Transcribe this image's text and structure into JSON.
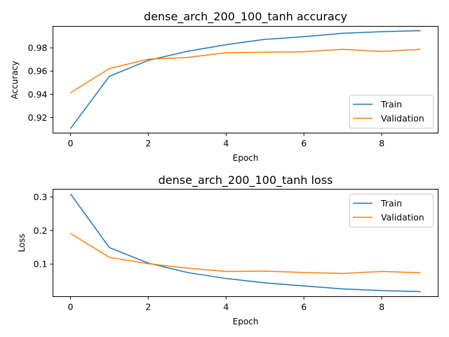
{
  "chart_data": [
    {
      "type": "line",
      "title": "dense_arch_200_100_tanh accuracy",
      "xlabel": "Epoch",
      "ylabel": "Accuracy",
      "xlim": [
        -0.45,
        9.45
      ],
      "ylim": [
        0.9067,
        0.9985
      ],
      "xticks": [
        0,
        2,
        4,
        6,
        8
      ],
      "yticks": [
        0.92,
        0.94,
        0.96,
        0.98
      ],
      "ytick_labels": [
        "0.92",
        "0.94",
        "0.96",
        "0.98"
      ],
      "legend_position": "lower-right",
      "x": [
        0,
        1,
        2,
        3,
        4,
        5,
        6,
        7,
        8,
        9
      ],
      "series": [
        {
          "name": "Train",
          "color": "#1f77b4",
          "values": [
            0.9105,
            0.9555,
            0.9692,
            0.977,
            0.9827,
            0.9873,
            0.9896,
            0.9925,
            0.9939,
            0.9948
          ]
        },
        {
          "name": "Validation",
          "color": "#ff7f0e",
          "values": [
            0.9413,
            0.9622,
            0.9703,
            0.9717,
            0.9758,
            0.9762,
            0.9766,
            0.9787,
            0.9768,
            0.9788
          ]
        }
      ]
    },
    {
      "type": "line",
      "title": "dense_arch_200_100_tanh loss",
      "xlabel": "Epoch",
      "ylabel": "Loss",
      "xlim": [
        -0.45,
        9.45
      ],
      "ylim": [
        0.003,
        0.323
      ],
      "xticks": [
        0,
        2,
        4,
        6,
        8
      ],
      "yticks": [
        0.1,
        0.2,
        0.3
      ],
      "ytick_labels": [
        "0.1",
        "0.2",
        "0.3"
      ],
      "legend_position": "upper-right",
      "x": [
        0,
        1,
        2,
        3,
        4,
        5,
        6,
        7,
        8,
        9
      ],
      "series": [
        {
          "name": "Train",
          "color": "#1f77b4",
          "values": [
            0.309,
            0.149,
            0.103,
            0.075,
            0.057,
            0.044,
            0.035,
            0.026,
            0.021,
            0.018
          ]
        },
        {
          "name": "Validation",
          "color": "#ff7f0e",
          "values": [
            0.191,
            0.12,
            0.101,
            0.088,
            0.078,
            0.079,
            0.075,
            0.072,
            0.078,
            0.074
          ]
        }
      ]
    }
  ]
}
